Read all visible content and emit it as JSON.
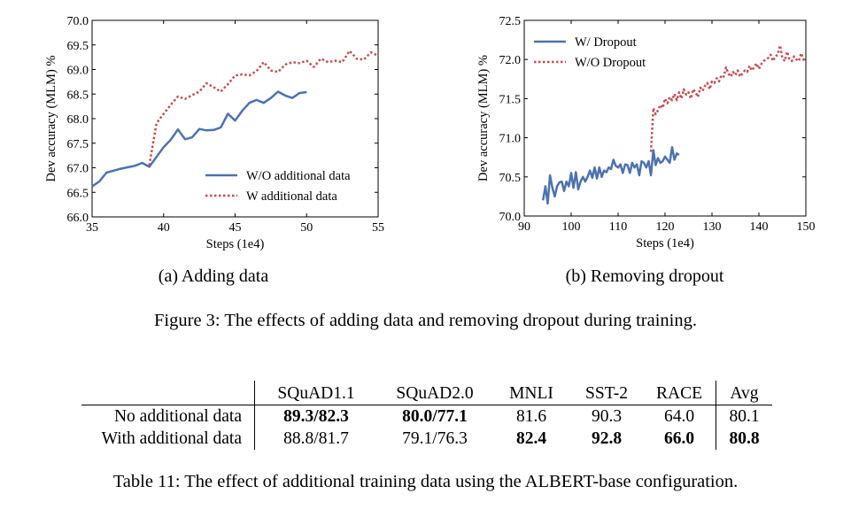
{
  "figure_caption": "Figure 3: The effects of adding data and removing dropout during training.",
  "table_caption": "Table 11: The effect of additional training data using the ALBERT-base configuration.",
  "chart_data": [
    {
      "type": "line",
      "subcaption": "(a) Adding data",
      "xlabel": "Steps (1e4)",
      "ylabel": "Dev accuracy (MLM) %",
      "xlim": [
        35,
        55
      ],
      "ylim": [
        66.0,
        70.0
      ],
      "xticks": [
        "35",
        "40",
        "45",
        "50",
        "55"
      ],
      "yticks": [
        "66.0",
        "66.5",
        "67.0",
        "67.5",
        "68.0",
        "68.5",
        "69.0",
        "69.5",
        "70.0"
      ],
      "legend_position": "lower-right",
      "series": [
        {
          "name": "W/O additional data",
          "color": "#4c72b0",
          "style": "solid",
          "x": [
            35,
            35.5,
            36,
            36.5,
            37,
            37.5,
            38,
            38.5,
            39,
            39.5,
            40,
            40.5,
            41,
            41.5,
            42,
            42.5,
            43,
            43.5,
            44,
            44.5,
            45,
            45.5,
            46,
            46.5,
            47,
            47.5,
            48,
            48.5,
            49,
            49.5,
            50
          ],
          "y": [
            66.62,
            66.72,
            66.9,
            66.94,
            66.98,
            67.01,
            67.04,
            67.1,
            67.02,
            67.22,
            67.42,
            67.57,
            67.78,
            67.58,
            67.62,
            67.79,
            67.76,
            67.77,
            67.82,
            68.1,
            67.96,
            68.16,
            68.32,
            68.38,
            68.32,
            68.42,
            68.55,
            68.47,
            68.42,
            68.52,
            68.54
          ]
        },
        {
          "name": "W additional data",
          "color": "#c44e52",
          "style": "dotted",
          "x": [
            39,
            39.5,
            40,
            40.5,
            41,
            41.5,
            42,
            42.5,
            43,
            43.5,
            44,
            44.5,
            45,
            45.5,
            46,
            46.5,
            47,
            47.5,
            48,
            48.5,
            49,
            49.5,
            50,
            50.5,
            51,
            51.5,
            52,
            52.5,
            53,
            53.5,
            54,
            54.5,
            55
          ],
          "y": [
            67.05,
            67.9,
            68.1,
            68.28,
            68.45,
            68.4,
            68.48,
            68.55,
            68.72,
            68.64,
            68.55,
            68.7,
            68.88,
            68.9,
            68.88,
            68.97,
            69.15,
            68.98,
            68.95,
            69.1,
            69.15,
            69.13,
            69.18,
            69.05,
            69.22,
            69.15,
            69.18,
            69.15,
            69.38,
            69.22,
            69.2,
            69.35,
            69.28
          ]
        }
      ]
    },
    {
      "type": "line",
      "subcaption": "(b) Removing dropout",
      "xlabel": "Steps (1e4)",
      "ylabel": "Dev accuracy (MLM) %",
      "xlim": [
        90,
        150
      ],
      "ylim": [
        70.0,
        72.5
      ],
      "xticks": [
        "90",
        "100",
        "110",
        "120",
        "130",
        "140",
        "150"
      ],
      "yticks": [
        "70.0",
        "70.5",
        "71.0",
        "71.5",
        "72.0",
        "72.5"
      ],
      "legend_position": "upper-left",
      "series": [
        {
          "name": "W/ Dropout",
          "color": "#4c72b0",
          "style": "solid",
          "x": [
            94,
            94.5,
            95,
            95.5,
            96,
            96.5,
            97,
            97.5,
            98,
            98.5,
            99,
            99.5,
            100,
            100.5,
            101,
            101.5,
            102,
            102.5,
            103,
            103.5,
            104,
            104.5,
            105,
            105.5,
            106,
            106.5,
            107,
            107.5,
            108,
            108.5,
            109,
            109.5,
            110,
            110.5,
            111,
            111.5,
            112,
            112.5,
            113,
            113.5,
            114,
            114.5,
            115,
            115.5,
            116,
            116.5,
            117,
            117.5,
            118,
            118.5,
            119,
            119.5,
            120,
            120.5,
            121,
            121.5,
            122,
            122.5,
            123
          ],
          "y": [
            70.2,
            70.38,
            70.16,
            70.52,
            70.36,
            70.25,
            70.38,
            70.43,
            70.44,
            70.32,
            70.44,
            70.38,
            70.55,
            70.36,
            70.56,
            70.34,
            70.44,
            70.5,
            70.44,
            70.5,
            70.58,
            70.49,
            70.62,
            70.48,
            70.62,
            70.5,
            70.58,
            70.56,
            70.62,
            70.6,
            70.72,
            70.64,
            70.62,
            70.66,
            70.55,
            70.66,
            70.65,
            70.55,
            70.68,
            70.62,
            70.66,
            70.52,
            70.7,
            70.68,
            70.62,
            70.7,
            70.52,
            70.84,
            70.65,
            70.74,
            70.68,
            70.7,
            70.76,
            70.72,
            70.68,
            70.88,
            70.72,
            70.8,
            70.78
          ]
        },
        {
          "name": "W/O Dropout",
          "color": "#c44e52",
          "style": "dotted",
          "x": [
            117,
            117.5,
            118,
            118.5,
            119,
            119.5,
            120,
            120.5,
            121,
            121.5,
            122,
            122.5,
            123,
            123.5,
            124,
            124.5,
            125,
            125.5,
            126,
            126.5,
            127,
            127.5,
            128,
            128.5,
            129,
            129.5,
            130,
            130.5,
            131,
            131.5,
            132,
            132.5,
            133,
            133.5,
            134,
            134.5,
            135,
            135.5,
            136,
            136.5,
            137,
            137.5,
            138,
            138.5,
            139,
            139.5,
            140,
            140.5,
            141,
            141.5,
            142,
            142.5,
            143,
            143.5,
            144,
            144.5,
            145,
            145.5,
            146,
            146.5,
            147,
            147.5,
            148,
            148.5,
            149,
            149.5,
            150
          ],
          "y": [
            70.82,
            71.38,
            71.3,
            71.35,
            71.42,
            71.38,
            71.5,
            71.44,
            71.52,
            71.48,
            71.56,
            71.48,
            71.58,
            71.5,
            71.62,
            71.55,
            71.58,
            71.5,
            71.62,
            71.58,
            71.52,
            71.64,
            71.6,
            71.66,
            71.7,
            71.62,
            71.72,
            71.7,
            71.76,
            71.72,
            71.8,
            71.78,
            71.9,
            71.82,
            71.78,
            71.84,
            71.8,
            71.86,
            71.78,
            71.82,
            71.86,
            71.84,
            71.92,
            71.86,
            71.9,
            71.95,
            71.88,
            71.94,
            71.98,
            72.0,
            72.02,
            72.06,
            71.98,
            72.04,
            72.06,
            72.18,
            72.02,
            71.98,
            72.1,
            72.0,
            71.98,
            72.04,
            72.0,
            71.98,
            72.08,
            72.0,
            71.98
          ]
        }
      ]
    },
    {
      "type": "table",
      "columns": [
        "",
        "SQuAD1.1",
        "SQuAD2.0",
        "MNLI",
        "SST-2",
        "RACE",
        "Avg"
      ],
      "rows": [
        {
          "label": "No additional data",
          "cells": [
            {
              "text": "89.3/82.3",
              "bold": true
            },
            {
              "text": "80.0/77.1",
              "bold": true
            },
            {
              "text": "81.6",
              "bold": false
            },
            {
              "text": "90.3",
              "bold": false
            },
            {
              "text": "64.0",
              "bold": false
            },
            {
              "text": "80.1",
              "bold": false
            }
          ]
        },
        {
          "label": "With additional data",
          "cells": [
            {
              "text": "88.8/81.7",
              "bold": false
            },
            {
              "text": "79.1/76.3",
              "bold": false
            },
            {
              "text": "82.4",
              "bold": true
            },
            {
              "text": "92.8",
              "bold": true
            },
            {
              "text": "66.0",
              "bold": true
            },
            {
              "text": "80.8",
              "bold": true
            }
          ]
        }
      ]
    }
  ]
}
